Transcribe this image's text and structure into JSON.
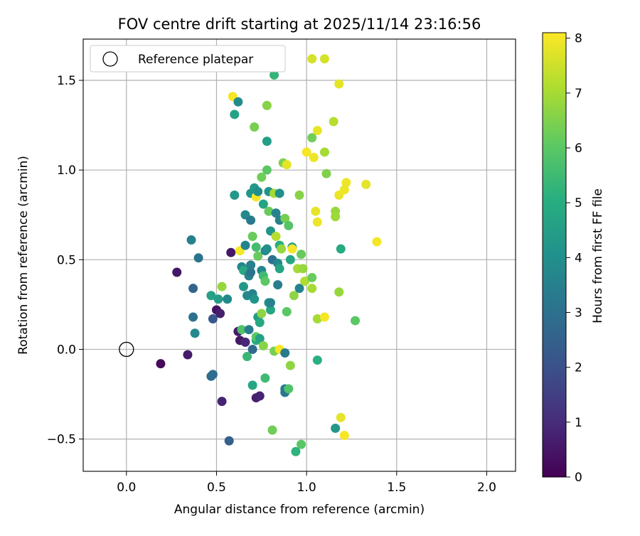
{
  "chart_data": {
    "type": "scatter",
    "title": "FOV centre drift starting at 2025/11/14 23:16:56",
    "xlabel": "Angular distance from reference (arcmin)",
    "ylabel": "Rotation from reference (arcmin)",
    "xlim": [
      -0.24,
      2.16
    ],
    "ylim": [
      -0.68,
      1.73
    ],
    "xticks": [
      0.0,
      0.5,
      1.0,
      1.5,
      2.0
    ],
    "xtick_labels": [
      "0.0",
      "0.5",
      "1.0",
      "1.5",
      "2.0"
    ],
    "yticks": [
      -0.5,
      0.0,
      0.5,
      1.0,
      1.5
    ],
    "ytick_labels": [
      "−0.5",
      "0.0",
      "0.5",
      "1.0",
      "1.5"
    ],
    "grid": true,
    "legend": {
      "position": "top-left",
      "entries": [
        "Reference platepar"
      ]
    },
    "reference_point": {
      "x": 0.0,
      "y": 0.0
    },
    "colorbar": {
      "label": "Hours from first FF file",
      "colormap": "viridis",
      "range": [
        0,
        8.1
      ],
      "ticks": [
        0,
        1,
        2,
        3,
        4,
        5,
        6,
        7,
        8
      ],
      "tick_labels": [
        "0",
        "1",
        "2",
        "3",
        "4",
        "5",
        "6",
        "7",
        "8"
      ]
    },
    "points": [
      {
        "x": 0.19,
        "y": -0.08,
        "c": 0.2
      },
      {
        "x": 0.28,
        "y": 0.43,
        "c": 0.5
      },
      {
        "x": 0.34,
        "y": -0.03,
        "c": 0.6
      },
      {
        "x": 0.36,
        "y": 0.61,
        "c": 3.5
      },
      {
        "x": 0.37,
        "y": 0.34,
        "c": 2.6
      },
      {
        "x": 0.37,
        "y": 0.18,
        "c": 3.0
      },
      {
        "x": 0.38,
        "y": 0.09,
        "c": 3.8
      },
      {
        "x": 0.4,
        "y": 0.51,
        "c": 3.1
      },
      {
        "x": 0.47,
        "y": -0.15,
        "c": 2.8
      },
      {
        "x": 0.47,
        "y": 0.3,
        "c": 4.6
      },
      {
        "x": 0.48,
        "y": -0.14,
        "c": 2.9
      },
      {
        "x": 0.48,
        "y": 0.17,
        "c": 2.2
      },
      {
        "x": 0.5,
        "y": 0.22,
        "c": 0.4
      },
      {
        "x": 0.51,
        "y": 0.28,
        "c": 4.5
      },
      {
        "x": 0.52,
        "y": 0.2,
        "c": 0.7
      },
      {
        "x": 0.53,
        "y": 0.35,
        "c": 6.8
      },
      {
        "x": 0.53,
        "y": -0.29,
        "c": 0.8
      },
      {
        "x": 0.56,
        "y": 0.28,
        "c": 3.8
      },
      {
        "x": 0.57,
        "y": -0.51,
        "c": 2.5
      },
      {
        "x": 0.58,
        "y": 0.54,
        "c": 0.5
      },
      {
        "x": 0.59,
        "y": 1.41,
        "c": 8.0
      },
      {
        "x": 0.6,
        "y": 1.31,
        "c": 4.6
      },
      {
        "x": 0.6,
        "y": 0.86,
        "c": 4.3
      },
      {
        "x": 0.62,
        "y": 1.38,
        "c": 3.9
      },
      {
        "x": 0.62,
        "y": 0.1,
        "c": 0.6
      },
      {
        "x": 0.63,
        "y": 0.05,
        "c": 0.5
      },
      {
        "x": 0.63,
        "y": 0.55,
        "c": 8.0
      },
      {
        "x": 0.64,
        "y": 0.11,
        "c": 5.8
      },
      {
        "x": 0.64,
        "y": 0.46,
        "c": 3.7
      },
      {
        "x": 0.65,
        "y": 0.35,
        "c": 4.3
      },
      {
        "x": 0.65,
        "y": 0.44,
        "c": 4.9
      },
      {
        "x": 0.66,
        "y": 0.04,
        "c": 0.9
      },
      {
        "x": 0.66,
        "y": 0.58,
        "c": 3.6
      },
      {
        "x": 0.66,
        "y": 0.75,
        "c": 3.8
      },
      {
        "x": 0.67,
        "y": 0.3,
        "c": 3.8
      },
      {
        "x": 0.67,
        "y": -0.04,
        "c": 5.4
      },
      {
        "x": 0.68,
        "y": 0.41,
        "c": 3.5
      },
      {
        "x": 0.68,
        "y": 0.11,
        "c": 3.4
      },
      {
        "x": 0.69,
        "y": 0.87,
        "c": 4.2
      },
      {
        "x": 0.69,
        "y": 0.72,
        "c": 3.3
      },
      {
        "x": 0.69,
        "y": 0.43,
        "c": 3.1
      },
      {
        "x": 0.69,
        "y": 0.47,
        "c": 3.5
      },
      {
        "x": 0.7,
        "y": -0.2,
        "c": 4.8
      },
      {
        "x": 0.7,
        "y": 0.63,
        "c": 6.2
      },
      {
        "x": 0.7,
        "y": 0.31,
        "c": 3.6
      },
      {
        "x": 0.7,
        "y": 0.0,
        "c": 2.8
      },
      {
        "x": 0.71,
        "y": 0.9,
        "c": 4.3
      },
      {
        "x": 0.71,
        "y": 1.24,
        "c": 6.4
      },
      {
        "x": 0.71,
        "y": 0.28,
        "c": 4.2
      },
      {
        "x": 0.72,
        "y": 0.05,
        "c": 5.0
      },
      {
        "x": 0.72,
        "y": 0.57,
        "c": 5.6
      },
      {
        "x": 0.72,
        "y": 0.07,
        "c": 6.0
      },
      {
        "x": 0.72,
        "y": -0.27,
        "c": 0.7
      },
      {
        "x": 0.72,
        "y": 0.85,
        "c": 8.0
      },
      {
        "x": 0.73,
        "y": 0.18,
        "c": 4.4
      },
      {
        "x": 0.73,
        "y": 0.52,
        "c": 6.2
      },
      {
        "x": 0.73,
        "y": 0.88,
        "c": 4.0
      },
      {
        "x": 0.74,
        "y": -0.26,
        "c": 0.8
      },
      {
        "x": 0.74,
        "y": 0.06,
        "c": 4.6
      },
      {
        "x": 0.74,
        "y": 0.15,
        "c": 4.9
      },
      {
        "x": 0.75,
        "y": 0.2,
        "c": 6.7
      },
      {
        "x": 0.75,
        "y": 0.44,
        "c": 3.7
      },
      {
        "x": 0.75,
        "y": 0.96,
        "c": 6.3
      },
      {
        "x": 0.76,
        "y": 0.41,
        "c": 5.5
      },
      {
        "x": 0.76,
        "y": 0.81,
        "c": 4.7
      },
      {
        "x": 0.76,
        "y": 0.02,
        "c": 6.6
      },
      {
        "x": 0.77,
        "y": 0.38,
        "c": 6.0
      },
      {
        "x": 0.77,
        "y": 0.55,
        "c": 3.8
      },
      {
        "x": 0.77,
        "y": -0.16,
        "c": 5.5
      },
      {
        "x": 0.78,
        "y": 1.36,
        "c": 6.6
      },
      {
        "x": 0.78,
        "y": 1.16,
        "c": 4.5
      },
      {
        "x": 0.78,
        "y": 1.0,
        "c": 6.0
      },
      {
        "x": 0.78,
        "y": 0.56,
        "c": 4.0
      },
      {
        "x": 0.79,
        "y": 0.77,
        "c": 6.2
      },
      {
        "x": 0.79,
        "y": 0.26,
        "c": 4.3
      },
      {
        "x": 0.79,
        "y": 0.88,
        "c": 4.2
      },
      {
        "x": 0.8,
        "y": 0.22,
        "c": 4.8
      },
      {
        "x": 0.8,
        "y": 0.66,
        "c": 4.2
      },
      {
        "x": 0.8,
        "y": 0.26,
        "c": 3.6
      },
      {
        "x": 0.81,
        "y": -0.45,
        "c": 6.3
      },
      {
        "x": 0.81,
        "y": 0.5,
        "c": 3.0
      },
      {
        "x": 0.82,
        "y": 1.53,
        "c": 5.3
      },
      {
        "x": 0.82,
        "y": 0.87,
        "c": 7.0
      },
      {
        "x": 0.82,
        "y": -0.01,
        "c": 6.4
      },
      {
        "x": 0.83,
        "y": 0.63,
        "c": 7.2
      },
      {
        "x": 0.83,
        "y": 0.76,
        "c": 3.6
      },
      {
        "x": 0.84,
        "y": 0.48,
        "c": 3.8
      },
      {
        "x": 0.84,
        "y": 0.36,
        "c": 3.4
      },
      {
        "x": 0.85,
        "y": 0.87,
        "c": 4.0
      },
      {
        "x": 0.85,
        "y": 0.45,
        "c": 4.7
      },
      {
        "x": 0.85,
        "y": 0.72,
        "c": 3.6
      },
      {
        "x": 0.85,
        "y": 0.58,
        "c": 5.0
      },
      {
        "x": 0.85,
        "y": 0.0,
        "c": 8.0
      },
      {
        "x": 0.86,
        "y": 0.56,
        "c": 6.8
      },
      {
        "x": 0.87,
        "y": 1.04,
        "c": 6.5
      },
      {
        "x": 0.88,
        "y": -0.02,
        "c": 3.3
      },
      {
        "x": 0.88,
        "y": -0.22,
        "c": 3.5
      },
      {
        "x": 0.88,
        "y": -0.24,
        "c": 3.2
      },
      {
        "x": 0.88,
        "y": 0.73,
        "c": 6.4
      },
      {
        "x": 0.89,
        "y": 0.21,
        "c": 6.0
      },
      {
        "x": 0.89,
        "y": 1.03,
        "c": 7.8
      },
      {
        "x": 0.9,
        "y": -0.22,
        "c": 5.8
      },
      {
        "x": 0.9,
        "y": 0.69,
        "c": 5.9
      },
      {
        "x": 0.91,
        "y": 0.5,
        "c": 4.8
      },
      {
        "x": 0.91,
        "y": -0.09,
        "c": 6.7
      },
      {
        "x": 0.92,
        "y": 0.57,
        "c": 4.4
      },
      {
        "x": 0.92,
        "y": 0.56,
        "c": 8.0
      },
      {
        "x": 0.93,
        "y": 0.3,
        "c": 6.7
      },
      {
        "x": 0.94,
        "y": -0.57,
        "c": 5.2
      },
      {
        "x": 0.95,
        "y": 0.45,
        "c": 7.0
      },
      {
        "x": 0.96,
        "y": 0.86,
        "c": 6.6
      },
      {
        "x": 0.96,
        "y": 0.34,
        "c": 3.6
      },
      {
        "x": 0.97,
        "y": -0.53,
        "c": 6.0
      },
      {
        "x": 0.97,
        "y": 0.53,
        "c": 6.2
      },
      {
        "x": 0.98,
        "y": 0.45,
        "c": 6.8
      },
      {
        "x": 0.99,
        "y": 0.38,
        "c": 7.1
      },
      {
        "x": 1.0,
        "y": 1.1,
        "c": 8.0
      },
      {
        "x": 1.03,
        "y": 1.62,
        "c": 7.6
      },
      {
        "x": 1.03,
        "y": 1.18,
        "c": 6.3
      },
      {
        "x": 1.03,
        "y": 0.4,
        "c": 6.2
      },
      {
        "x": 1.03,
        "y": 0.34,
        "c": 7.0
      },
      {
        "x": 1.04,
        "y": 1.07,
        "c": 7.9
      },
      {
        "x": 1.05,
        "y": 0.77,
        "c": 7.8
      },
      {
        "x": 1.06,
        "y": 1.22,
        "c": 7.8
      },
      {
        "x": 1.06,
        "y": 0.71,
        "c": 7.9
      },
      {
        "x": 1.06,
        "y": 0.17,
        "c": 7.0
      },
      {
        "x": 1.06,
        "y": -0.06,
        "c": 5.1
      },
      {
        "x": 1.1,
        "y": 1.62,
        "c": 7.6
      },
      {
        "x": 1.1,
        "y": 0.18,
        "c": 8.0
      },
      {
        "x": 1.1,
        "y": 1.1,
        "c": 7.0
      },
      {
        "x": 1.11,
        "y": 0.98,
        "c": 6.5
      },
      {
        "x": 1.15,
        "y": 1.27,
        "c": 7.2
      },
      {
        "x": 1.16,
        "y": 0.77,
        "c": 6.8
      },
      {
        "x": 1.16,
        "y": 0.74,
        "c": 6.9
      },
      {
        "x": 1.16,
        "y": -0.44,
        "c": 4.3
      },
      {
        "x": 1.18,
        "y": 1.48,
        "c": 7.8
      },
      {
        "x": 1.18,
        "y": 0.86,
        "c": 7.9
      },
      {
        "x": 1.18,
        "y": 0.32,
        "c": 6.8
      },
      {
        "x": 1.19,
        "y": 0.56,
        "c": 4.9
      },
      {
        "x": 1.19,
        "y": -0.38,
        "c": 7.8
      },
      {
        "x": 1.21,
        "y": 0.89,
        "c": 7.9
      },
      {
        "x": 1.21,
        "y": -0.48,
        "c": 8.0
      },
      {
        "x": 1.22,
        "y": 0.93,
        "c": 7.9
      },
      {
        "x": 1.27,
        "y": 0.16,
        "c": 6.0
      },
      {
        "x": 1.33,
        "y": 0.92,
        "c": 7.8
      },
      {
        "x": 1.39,
        "y": 0.6,
        "c": 8.0
      }
    ]
  }
}
